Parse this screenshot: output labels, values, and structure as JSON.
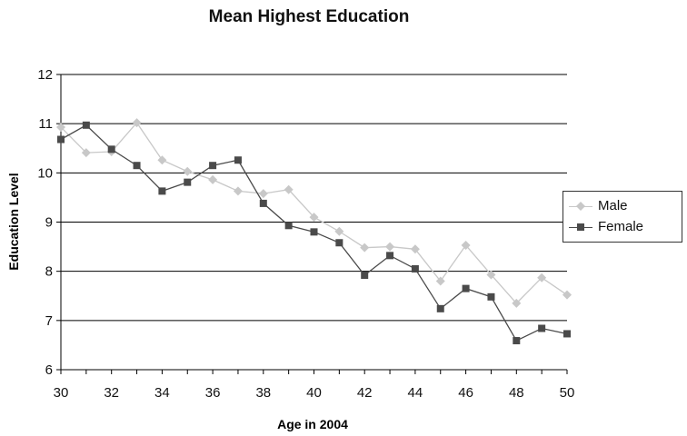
{
  "chart_data": {
    "type": "line",
    "title": "Mean Highest Education",
    "xlabel": "Age in 2004",
    "ylabel": "Education Level",
    "x": [
      30,
      31,
      32,
      33,
      34,
      35,
      36,
      37,
      38,
      39,
      40,
      41,
      42,
      43,
      44,
      45,
      46,
      47,
      48,
      49,
      50
    ],
    "xlim": [
      30,
      50
    ],
    "ylim": [
      6,
      12
    ],
    "xticks": [
      "30",
      "32",
      "34",
      "36",
      "38",
      "40",
      "42",
      "44",
      "46",
      "48",
      "50"
    ],
    "xtick_values": [
      30,
      32,
      34,
      36,
      38,
      40,
      42,
      44,
      46,
      48,
      50
    ],
    "yticks": [
      "6",
      "7",
      "8",
      "9",
      "10",
      "11",
      "12"
    ],
    "ytick_values": [
      6,
      7,
      8,
      9,
      10,
      11,
      12
    ],
    "grid": "horizontal",
    "legend_position": "right",
    "series": [
      {
        "name": "Male",
        "color": "#c8c8c8",
        "marker": "diamond",
        "values": [
          10.93,
          10.41,
          10.43,
          11.02,
          10.26,
          10.03,
          9.86,
          9.63,
          9.58,
          9.66,
          9.1,
          8.81,
          8.48,
          8.5,
          8.45,
          7.8,
          8.53,
          7.93,
          7.35,
          7.87,
          7.52
        ]
      },
      {
        "name": "Female",
        "color": "#4a4a4a",
        "marker": "square",
        "values": [
          10.68,
          10.97,
          10.48,
          10.15,
          9.63,
          9.81,
          10.15,
          10.26,
          9.38,
          8.93,
          8.8,
          8.58,
          7.92,
          8.32,
          8.05,
          7.24,
          7.65,
          7.48,
          6.59,
          6.84,
          6.73
        ]
      }
    ]
  }
}
